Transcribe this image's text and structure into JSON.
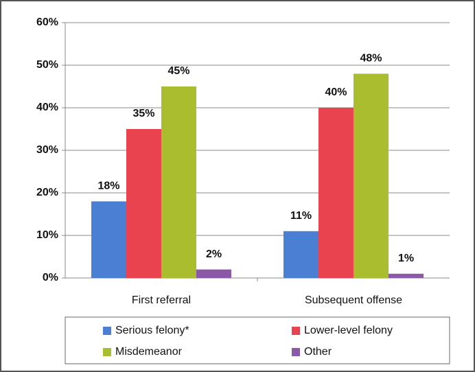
{
  "chart_data": {
    "type": "bar",
    "categories": [
      "First referral",
      "Subsequent offense"
    ],
    "series": [
      {
        "name": "Serious felony*",
        "color": "#4a7fd4",
        "values": [
          18,
          11
        ],
        "value_labels": [
          "18%",
          "11%"
        ]
      },
      {
        "name": "Lower-level felony",
        "color": "#e8434f",
        "values": [
          35,
          40
        ],
        "value_labels": [
          "35%",
          "40%"
        ]
      },
      {
        "name": "Misdemeanor",
        "color": "#a9bd2f",
        "values": [
          45,
          48
        ],
        "value_labels": [
          "45%",
          "48%"
        ]
      },
      {
        "name": "Other",
        "color": "#8a5aa8",
        "values": [
          2,
          1
        ],
        "value_labels": [
          "2%",
          "1%"
        ]
      }
    ],
    "ylim": [
      0,
      60
    ],
    "yticks": [
      {
        "value": 0,
        "label": "0%"
      },
      {
        "value": 10,
        "label": "10%"
      },
      {
        "value": 20,
        "label": "20%"
      },
      {
        "value": 30,
        "label": "30%"
      },
      {
        "value": 40,
        "label": "40%"
      },
      {
        "value": 50,
        "label": "50%"
      },
      {
        "value": 60,
        "label": "60%"
      }
    ],
    "grid": true,
    "legend": "bottom"
  }
}
